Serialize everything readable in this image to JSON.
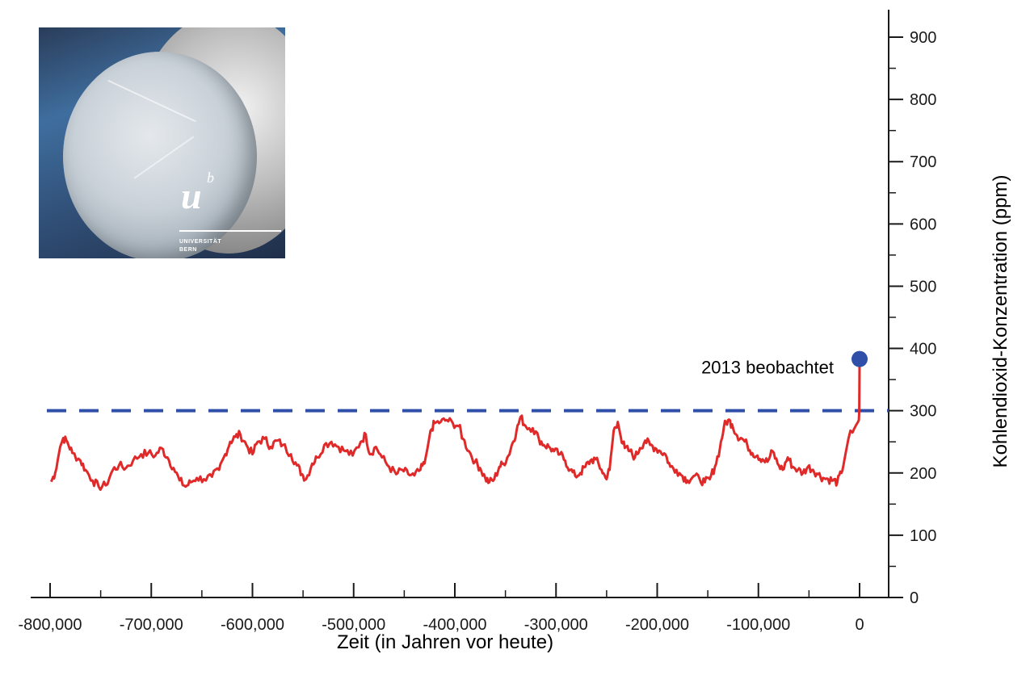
{
  "photo": {
    "logo_letter": "u",
    "logo_superscript": "b",
    "logo_line1": "UNIVERSITÄT",
    "logo_line2": "BERN"
  },
  "chart_data": {
    "type": "line",
    "xlabel": "Zeit (in Jahren vor heute)",
    "ylabel": "Kohlendioxid-Konzentration (ppm)",
    "xlim": [
      -800000,
      0
    ],
    "ylim": [
      0,
      900
    ],
    "x_ticks": [
      -800000,
      -700000,
      -600000,
      -500000,
      -400000,
      -300000,
      -200000,
      -100000,
      0
    ],
    "x_tick_labels": [
      "-800,000",
      "-700,000",
      "-600,000",
      "-500,000",
      "-400,000",
      "-300,000",
      "-200,000",
      "-100,000",
      "0"
    ],
    "y_ticks": [
      0,
      100,
      200,
      300,
      400,
      500,
      600,
      700,
      800,
      900
    ],
    "y_tick_labels": [
      "0",
      "100",
      "200",
      "300",
      "400",
      "500",
      "600",
      "700",
      "800",
      "900"
    ],
    "reference_line": {
      "y": 300,
      "style": "dashed",
      "color": "#2f4fa8"
    },
    "annotation": {
      "text": "2013 beobachtet",
      "x": 0,
      "y": 383,
      "marker_color": "#2f4fa8"
    },
    "series": [
      {
        "color": "#e02a2a",
        "points": [
          [
            -799000,
            186
          ],
          [
            -795000,
            200
          ],
          [
            -790000,
            242
          ],
          [
            -787000,
            256
          ],
          [
            -783000,
            250
          ],
          [
            -778000,
            232
          ],
          [
            -770000,
            220
          ],
          [
            -765000,
            205
          ],
          [
            -758000,
            188
          ],
          [
            -752000,
            178
          ],
          [
            -745000,
            180
          ],
          [
            -738000,
            205
          ],
          [
            -732000,
            212
          ],
          [
            -725000,
            208
          ],
          [
            -718000,
            220
          ],
          [
            -710000,
            230
          ],
          [
            -703000,
            232
          ],
          [
            -696000,
            228
          ],
          [
            -690000,
            240
          ],
          [
            -684000,
            225
          ],
          [
            -678000,
            208
          ],
          [
            -672000,
            188
          ],
          [
            -666000,
            178
          ],
          [
            -661000,
            185
          ],
          [
            -655000,
            192
          ],
          [
            -648000,
            190
          ],
          [
            -640000,
            194
          ],
          [
            -633000,
            205
          ],
          [
            -627000,
            230
          ],
          [
            -622000,
            250
          ],
          [
            -617000,
            258
          ],
          [
            -612000,
            262
          ],
          [
            -606000,
            245
          ],
          [
            -600000,
            230
          ],
          [
            -595000,
            250
          ],
          [
            -588000,
            255
          ],
          [
            -582000,
            242
          ],
          [
            -576000,
            252
          ],
          [
            -570000,
            245
          ],
          [
            -562000,
            230
          ],
          [
            -556000,
            212
          ],
          [
            -551000,
            198
          ],
          [
            -547000,
            190
          ],
          [
            -541000,
            215
          ],
          [
            -536000,
            225
          ],
          [
            -529000,
            245
          ],
          [
            -522000,
            250
          ],
          [
            -515000,
            242
          ],
          [
            -508000,
            235
          ],
          [
            -501000,
            228
          ],
          [
            -493000,
            250
          ],
          [
            -488000,
            262
          ],
          [
            -484000,
            230
          ],
          [
            -478000,
            242
          ],
          [
            -472000,
            225
          ],
          [
            -465000,
            210
          ],
          [
            -458000,
            198
          ],
          [
            -452000,
            205
          ],
          [
            -446000,
            198
          ],
          [
            -440000,
            196
          ],
          [
            -434000,
            205
          ],
          [
            -430000,
            215
          ],
          [
            -427000,
            240
          ],
          [
            -424000,
            268
          ],
          [
            -420000,
            280
          ],
          [
            -414000,
            282
          ],
          [
            -408000,
            285
          ],
          [
            -402000,
            280
          ],
          [
            -396000,
            275
          ],
          [
            -392000,
            255
          ],
          [
            -386000,
            235
          ],
          [
            -380000,
            218
          ],
          [
            -375000,
            208
          ],
          [
            -370000,
            192
          ],
          [
            -366000,
            185
          ],
          [
            -361000,
            190
          ],
          [
            -356000,
            210
          ],
          [
            -352000,
            215
          ],
          [
            -347000,
            228
          ],
          [
            -343000,
            248
          ],
          [
            -339000,
            268
          ],
          [
            -335000,
            290
          ],
          [
            -330000,
            275
          ],
          [
            -323000,
            272
          ],
          [
            -317000,
            255
          ],
          [
            -312000,
            245
          ],
          [
            -307000,
            242
          ],
          [
            -302000,
            235
          ],
          [
            -296000,
            230
          ],
          [
            -291000,
            220
          ],
          [
            -286000,
            205
          ],
          [
            -281000,
            195
          ],
          [
            -276000,
            200
          ],
          [
            -271000,
            210
          ],
          [
            -266000,
            220
          ],
          [
            -261000,
            222
          ],
          [
            -255000,
            205
          ],
          [
            -251000,
            192
          ],
          [
            -247000,
            205
          ],
          [
            -243000,
            268
          ],
          [
            -239000,
            282
          ],
          [
            -236000,
            258
          ],
          [
            -232000,
            240
          ],
          [
            -227000,
            235
          ],
          [
            -222000,
            225
          ],
          [
            -217000,
            240
          ],
          [
            -212000,
            252
          ],
          [
            -207000,
            245
          ],
          [
            -202000,
            240
          ],
          [
            -197000,
            235
          ],
          [
            -192000,
            230
          ],
          [
            -187000,
            210
          ],
          [
            -181000,
            205
          ],
          [
            -175000,
            195
          ],
          [
            -170000,
            188
          ],
          [
            -164000,
            195
          ],
          [
            -158000,
            190
          ],
          [
            -153000,
            185
          ],
          [
            -148000,
            190
          ],
          [
            -143000,
            210
          ],
          [
            -138000,
            240
          ],
          [
            -134000,
            275
          ],
          [
            -130000,
            285
          ],
          [
            -126000,
            278
          ],
          [
            -121000,
            260
          ],
          [
            -116000,
            255
          ],
          [
            -111000,
            245
          ],
          [
            -106000,
            232
          ],
          [
            -101000,
            228
          ],
          [
            -96000,
            222
          ],
          [
            -91000,
            218
          ],
          [
            -86000,
            235
          ],
          [
            -81000,
            215
          ],
          [
            -76000,
            205
          ],
          [
            -71000,
            225
          ],
          [
            -66000,
            210
          ],
          [
            -61000,
            205
          ],
          [
            -56000,
            200
          ],
          [
            -51000,
            210
          ],
          [
            -46000,
            205
          ],
          [
            -41000,
            198
          ],
          [
            -36000,
            192
          ],
          [
            -31000,
            190
          ],
          [
            -26000,
            188
          ],
          [
            -22000,
            185
          ],
          [
            -18000,
            200
          ],
          [
            -14000,
            230
          ],
          [
            -11000,
            255
          ],
          [
            -9000,
            268
          ],
          [
            -7000,
            265
          ],
          [
            -5000,
            272
          ],
          [
            -3000,
            278
          ],
          [
            -1500,
            282
          ],
          [
            -700,
            285
          ],
          [
            -300,
            300
          ],
          [
            0,
            383
          ]
        ]
      }
    ]
  }
}
